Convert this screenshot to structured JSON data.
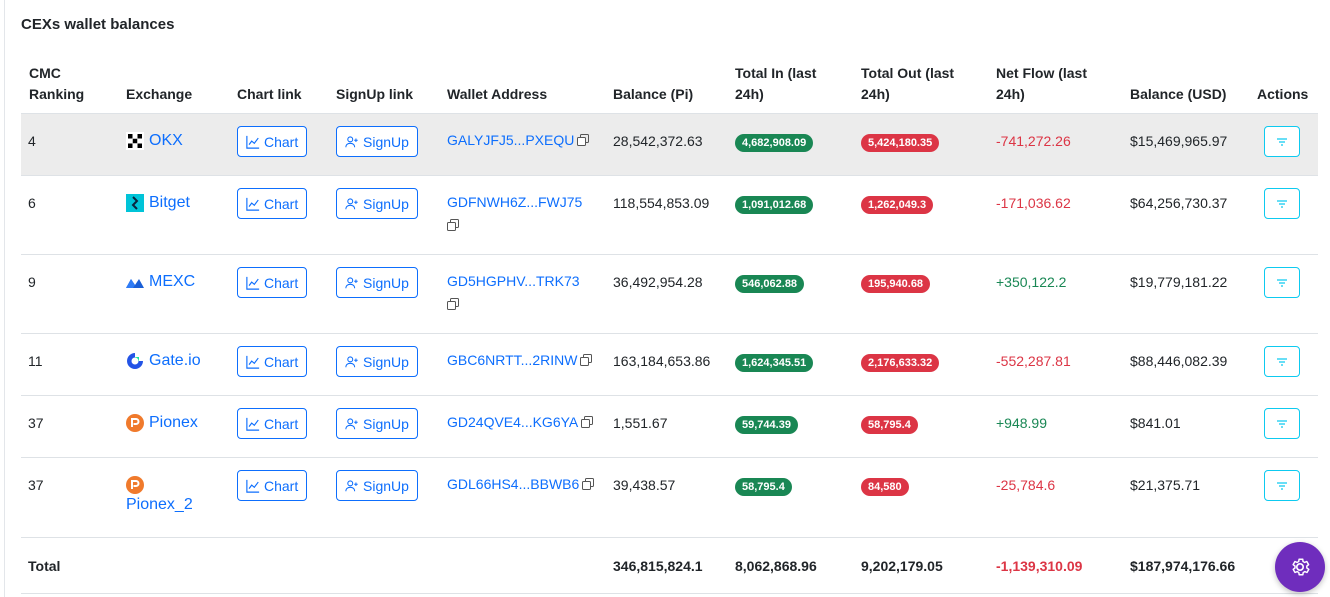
{
  "page": {
    "title": "CEXs wallet balances"
  },
  "table": {
    "headers": {
      "rank": "CMC Ranking",
      "exchange": "Exchange",
      "chart": "Chart link",
      "signup": "SignUp link",
      "wallet": "Wallet Address",
      "balance_pi": "Balance (Pi)",
      "total_in": "Total In (last 24h)",
      "total_out": "Total Out (last 24h)",
      "net_flow": "Net Flow (last 24h)",
      "balance_usd": "Balance (USD)",
      "actions": "Actions"
    },
    "chart_button_label": "Chart",
    "signup_button_label": "SignUp",
    "rows": [
      {
        "rank": "4",
        "exchange": "OKX",
        "wallet": "GALYJFJ5...PXEQU",
        "balance_pi": "28,542,372.63",
        "total_in": "4,682,908.09",
        "total_out": "5,424,180.35",
        "net_flow": "-741,272.26",
        "balance_usd": "$15,469,965.97"
      },
      {
        "rank": "6",
        "exchange": "Bitget",
        "wallet": "GDFNWH6Z...FWJ75",
        "balance_pi": "118,554,853.09",
        "total_in": "1,091,012.68",
        "total_out": "1,262,049.3",
        "net_flow": "-171,036.62",
        "balance_usd": "$64,256,730.37"
      },
      {
        "rank": "9",
        "exchange": "MEXC",
        "wallet": "GD5HGPHV...TRK73",
        "balance_pi": "36,492,954.28",
        "total_in": "546,062.88",
        "total_out": "195,940.68",
        "net_flow": "+350,122.2",
        "balance_usd": "$19,779,181.22"
      },
      {
        "rank": "11",
        "exchange": "Gate.io",
        "wallet": "GBC6NRTT...2RINW",
        "balance_pi": "163,184,653.86",
        "total_in": "1,624,345.51",
        "total_out": "2,176,633.32",
        "net_flow": "-552,287.81",
        "balance_usd": "$88,446,082.39"
      },
      {
        "rank": "37",
        "exchange": "Pionex",
        "wallet": "GD24QVE4...KG6YA",
        "balance_pi": "1,551.67",
        "total_in": "59,744.39",
        "total_out": "58,795.4",
        "net_flow": "+948.99",
        "balance_usd": "$841.01"
      },
      {
        "rank": "37",
        "exchange": "Pionex_2",
        "wallet": "GDL66HS4...BBWB6",
        "balance_pi": "39,438.57",
        "total_in": "58,795.4",
        "total_out": "84,580",
        "net_flow": "-25,784.6",
        "balance_usd": "$21,375.71"
      }
    ],
    "total": {
      "label": "Total",
      "balance_pi": "346,815,824.1",
      "total_in": "8,062,868.96",
      "total_out": "9,202,179.05",
      "net_flow": "-1,139,310.09",
      "balance_usd": "$187,974,176.66"
    }
  },
  "colors": {
    "link": "#0d6efd",
    "in_badge": "#198754",
    "out_badge": "#dc3545",
    "negative": "#dc3545",
    "positive": "#198754",
    "action_border": "#0dcaf0",
    "fab": "#6f2dbd",
    "row_highlight": "#ececec"
  },
  "icons": {
    "chart_button": "line-chart-icon",
    "signup_button": "person-plus-icon",
    "wallet_copy": "copy-icon",
    "action": "filter-lines-icon",
    "fab": "gear-icon"
  }
}
